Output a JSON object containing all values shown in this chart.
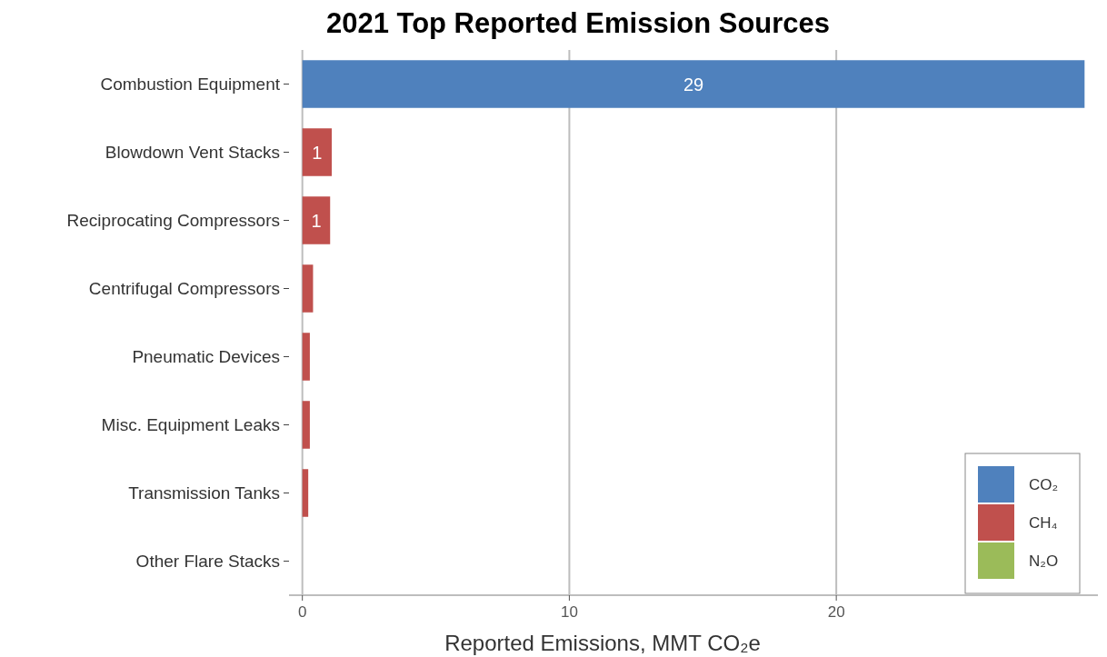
{
  "chart_data": {
    "type": "bar",
    "orientation": "horizontal",
    "title": "2021 Top Reported Emission Sources",
    "xlabel": "Reported Emissions, MMT CO₂e",
    "categories": [
      "Combustion Equipment",
      "Blowdown Vent Stacks",
      "Reciprocating Compressors",
      "Centrifugal Compressors",
      "Pneumatic Devices",
      "Misc. Equipment Leaks",
      "Transmission Tanks",
      "Other Flare Stacks"
    ],
    "series": [
      {
        "name": "CO₂",
        "color": "#4f81bd",
        "values": [
          29.3,
          null,
          null,
          null,
          null,
          null,
          null,
          null
        ],
        "value_labels": [
          "29",
          null,
          null,
          null,
          null,
          null,
          null,
          null
        ]
      },
      {
        "name": "CH₄",
        "color": "#c0504d",
        "values": [
          null,
          1.1,
          1.04,
          0.4,
          0.28,
          0.28,
          0.22,
          null
        ],
        "value_labels": [
          null,
          "1",
          "1",
          null,
          null,
          null,
          null,
          null
        ]
      },
      {
        "name": "N₂O",
        "color": "#9bbb59",
        "values": [
          null,
          null,
          null,
          null,
          null,
          null,
          null,
          null
        ]
      }
    ],
    "xlim": [
      -0.5,
      29.8
    ],
    "xticks": [
      0,
      10,
      20
    ],
    "grid": "x",
    "legend": "bottom right"
  }
}
